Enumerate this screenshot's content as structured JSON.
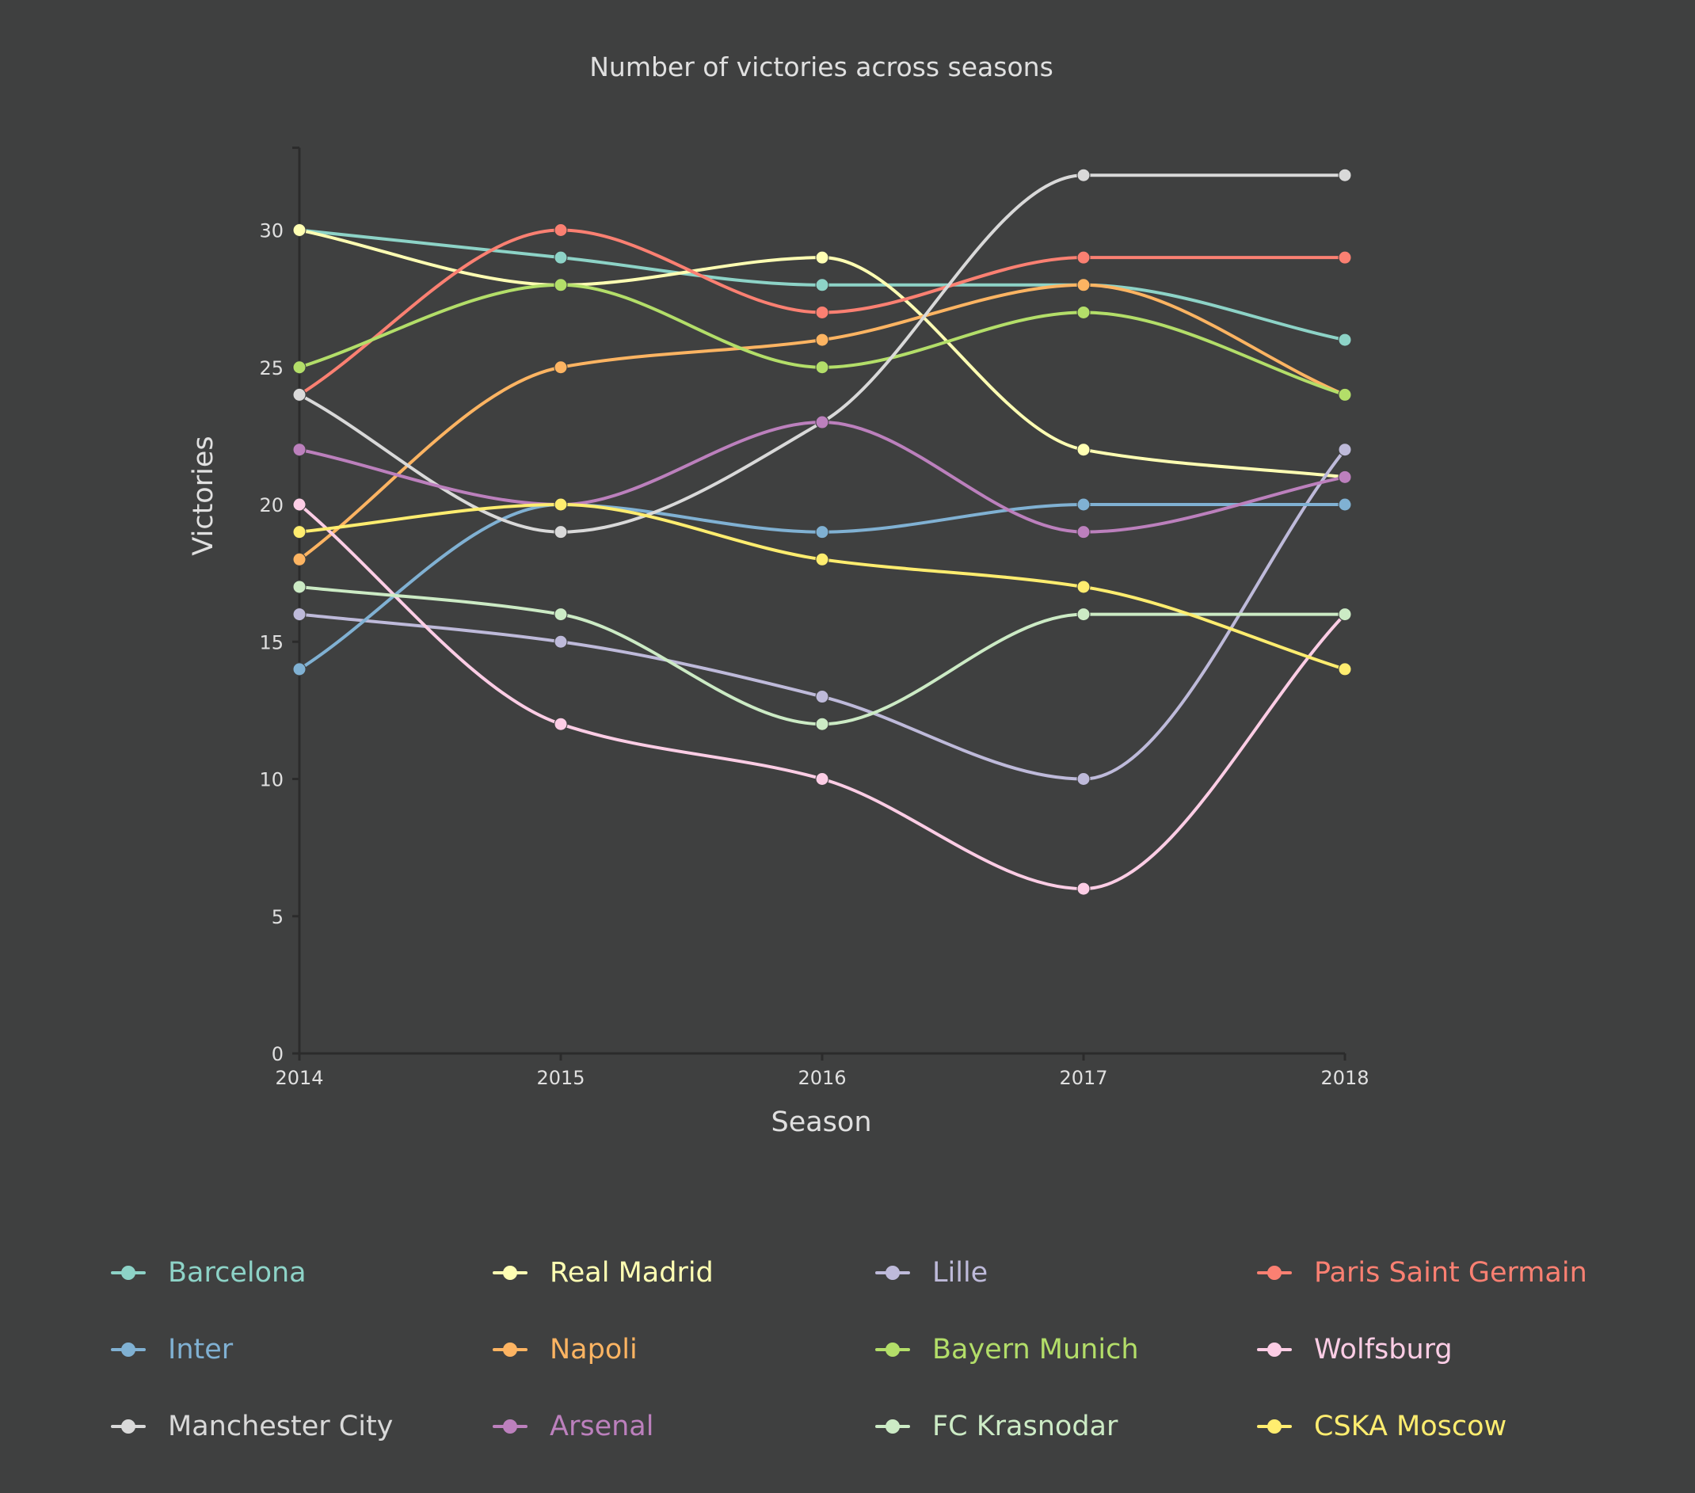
{
  "chart_data": {
    "type": "line",
    "title": "Number of victories across seasons",
    "xlabel": "Season",
    "ylabel": "Victories",
    "x": [
      2014,
      2015,
      2016,
      2017,
      2018
    ],
    "x_tick_labels": [
      "2014",
      "2015",
      "2016",
      "2017",
      "2018"
    ],
    "y_ticks": [
      0,
      5,
      10,
      15,
      20,
      25,
      30
    ],
    "y_tick_labels": [
      "0",
      "5",
      "10",
      "15",
      "20",
      "25",
      "30"
    ],
    "ylim": [
      0,
      33
    ],
    "grid": false,
    "legend_position": "bottom",
    "series": [
      {
        "name": "Barcelona",
        "color": "#8dd3c7",
        "values": [
          30,
          29,
          28,
          28,
          26
        ]
      },
      {
        "name": "Real Madrid",
        "color": "#ffffb3",
        "values": [
          30,
          28,
          29,
          22,
          21
        ]
      },
      {
        "name": "Lille",
        "color": "#bebada",
        "values": [
          16,
          15,
          13,
          10,
          22
        ]
      },
      {
        "name": "Paris Saint Germain",
        "color": "#fb8072",
        "values": [
          24,
          30,
          27,
          29,
          29
        ]
      },
      {
        "name": "Inter",
        "color": "#80b1d3",
        "values": [
          14,
          20,
          19,
          20,
          20
        ]
      },
      {
        "name": "Napoli",
        "color": "#fdb462",
        "values": [
          18,
          25,
          26,
          28,
          24
        ]
      },
      {
        "name": "Bayern Munich",
        "color": "#b3de69",
        "values": [
          25,
          28,
          25,
          27,
          24
        ]
      },
      {
        "name": "Wolfsburg",
        "color": "#fccde5",
        "values": [
          20,
          12,
          10,
          6,
          16
        ]
      },
      {
        "name": "Manchester City",
        "color": "#d9d9d9",
        "values": [
          24,
          19,
          23,
          32,
          32
        ]
      },
      {
        "name": "Arsenal",
        "color": "#bc80bd",
        "values": [
          22,
          20,
          23,
          19,
          21
        ]
      },
      {
        "name": "FC Krasnodar",
        "color": "#ccebc5",
        "values": [
          17,
          16,
          12,
          16,
          16
        ]
      },
      {
        "name": "CSKA Moscow",
        "color": "#ffed6f",
        "values": [
          19,
          20,
          18,
          17,
          14
        ]
      }
    ]
  },
  "colors": {
    "background": "#3f4040",
    "text": "#e0e0e0",
    "axis": "#2b2b2b"
  }
}
